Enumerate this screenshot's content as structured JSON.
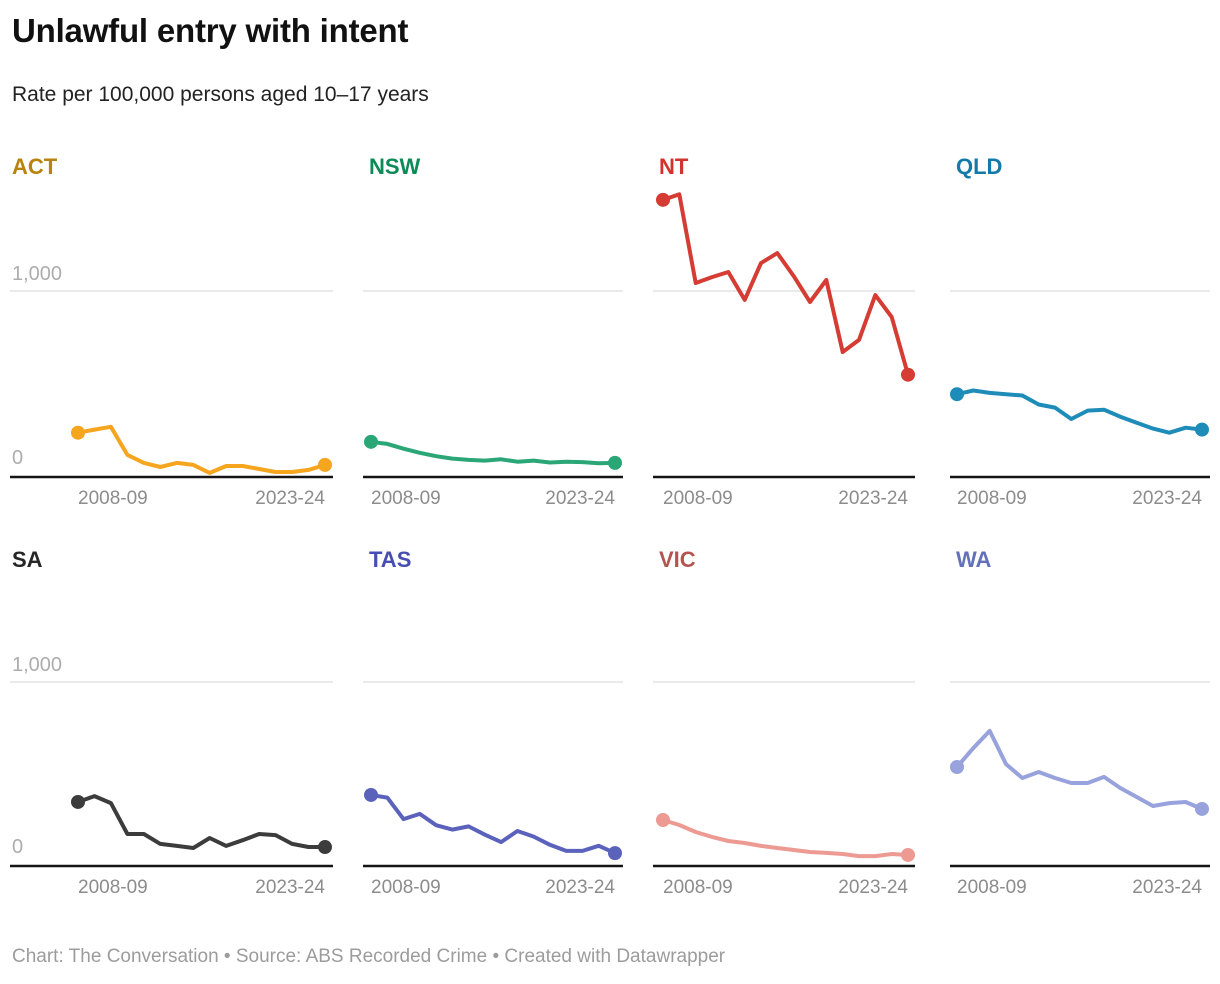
{
  "header": {
    "title": "Unlawful entry with intent",
    "subtitle": "Rate per 100,000 persons aged 10–17 years"
  },
  "footer": {
    "text": "Chart: The Conversation • Source: ABS Recorded Crime • Created with Datawrapper"
  },
  "axes": {
    "y_tick_labels": [
      "0",
      "1,000"
    ],
    "y_gridline_value": 1000,
    "x_first_tick": "2008-09",
    "x_last_tick": "2023-24"
  },
  "colors": {
    "gridline": "#e3e3e3",
    "baseline": "#151515",
    "tick_text": "#8c8c8c",
    "y_tick_text": "#adadad",
    "footer_text": "#9c9c9c"
  },
  "chart_data": {
    "type": "line",
    "layout": "small-multiples 2 rows x 4 cols, shared y scale, grid line at 1,000, baseline at 0",
    "title": "Unlawful entry with intent",
    "subtitle": "Rate per 100,000 persons aged 10–17 years",
    "ylim": [
      0,
      1600
    ],
    "x": [
      "2008-09",
      "2009-10",
      "2010-11",
      "2011-12",
      "2012-13",
      "2013-14",
      "2014-15",
      "2015-16",
      "2016-17",
      "2017-18",
      "2018-19",
      "2019-20",
      "2020-21",
      "2021-22",
      "2022-23",
      "2023-24"
    ],
    "series": [
      {
        "name": "ACT",
        "label_color": "#b9830d",
        "line_color": "#f6a51f",
        "values": [
          238,
          255,
          270,
          119,
          76,
          54,
          76,
          65,
          22,
          59,
          59,
          43,
          27,
          27,
          38,
          65
        ]
      },
      {
        "name": "NSW",
        "label_color": "#0d8a56",
        "line_color": "#2ba677",
        "values": [
          189,
          178,
          152,
          130,
          112,
          99,
          92,
          88,
          95,
          82,
          88,
          78,
          82,
          80,
          74,
          76
        ]
      },
      {
        "name": "NT",
        "label_color": "#d0342c",
        "line_color": "#d53c34",
        "values": [
          1490,
          1520,
          1043,
          1075,
          1102,
          952,
          1150,
          1204,
          1080,
          941,
          1059,
          672,
          737,
          978,
          860,
          550
        ]
      },
      {
        "name": "QLD",
        "label_color": "#1379a9",
        "line_color": "#1e8cb8",
        "values": [
          445,
          465,
          452,
          445,
          438,
          390,
          373,
          312,
          357,
          362,
          324,
          292,
          260,
          238,
          265,
          255
        ]
      },
      {
        "name": "SA",
        "label_color": "#262626",
        "line_color": "#3c3c3c",
        "values": [
          348,
          380,
          342,
          174,
          174,
          120,
          109,
          98,
          152,
          109,
          140,
          174,
          168,
          120,
          103,
          103
        ]
      },
      {
        "name": "TAS",
        "label_color": "#474eb0",
        "line_color": "#5b62bc",
        "values": [
          386,
          372,
          255,
          283,
          222,
          198,
          215,
          170,
          130,
          190,
          160,
          115,
          82,
          82,
          110,
          70
        ]
      },
      {
        "name": "VIC",
        "label_color": "#b55551",
        "line_color": "#ec9a92",
        "values": [
          250,
          223,
          185,
          158,
          136,
          125,
          109,
          98,
          87,
          76,
          71,
          65,
          54,
          54,
          65,
          60
        ]
      },
      {
        "name": "WA",
        "label_color": "#6471b8",
        "line_color": "#98a2dc",
        "values": [
          538,
          641,
          734,
          554,
          478,
          511,
          478,
          451,
          451,
          484,
          424,
          375,
          326,
          342,
          348,
          310
        ]
      }
    ]
  }
}
